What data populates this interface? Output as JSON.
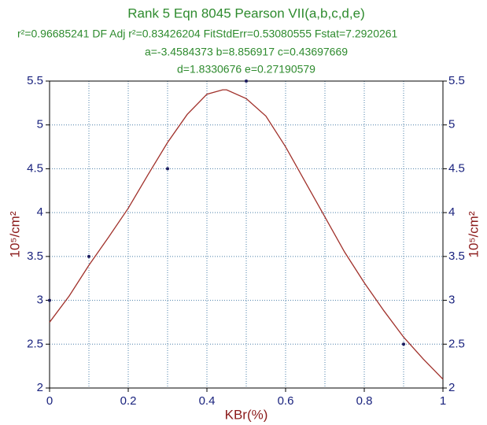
{
  "chart_data": {
    "type": "scatter",
    "title": "Rank 5  Eqn 8045  Pearson VII(a,b,c,d,e)",
    "subtitle": [
      "r²=0.96685241  DF Adj r²=0.83426204  FitStdErr=0.53080555  Fstat=7.2920261",
      "a=-3.4584373 b=8.856917 c=0.43697669",
      "d=1.8330676 e=0.27190579"
    ],
    "x_label": "KBr(%)",
    "y_label": "10⁵/cm²",
    "y2_label": "10⁵/cm²",
    "points": {
      "color": "#1a1a5e",
      "x": [
        0,
        0.1,
        0.3,
        0.5,
        0.9
      ],
      "values": [
        3,
        3.5,
        4.5,
        5.5,
        2.5
      ]
    },
    "fit": {
      "color": "#a0302a",
      "x": [
        0,
        0.05,
        0.1,
        0.15,
        0.2,
        0.25,
        0.3,
        0.35,
        0.4,
        0.44,
        0.45,
        0.5,
        0.55,
        0.6,
        0.65,
        0.7,
        0.75,
        0.8,
        0.85,
        0.9,
        0.95,
        1
      ],
      "values": [
        2.75,
        3.05,
        3.4,
        3.72,
        4.05,
        4.43,
        4.8,
        5.12,
        5.35,
        5.4,
        5.4,
        5.3,
        5.1,
        4.75,
        4.35,
        3.95,
        3.55,
        3.2,
        2.88,
        2.58,
        2.33,
        2.1
      ]
    },
    "xlim": [
      0,
      1
    ],
    "xticks": [
      0,
      0.2,
      0.4,
      0.6,
      0.8,
      1
    ],
    "xminor": [
      0.1,
      0.3,
      0.5,
      0.7,
      0.9
    ],
    "ylim": [
      2,
      5.5
    ],
    "yticks": [
      2,
      2.5,
      3,
      3.5,
      4,
      4.5,
      5,
      5.5
    ],
    "y2lim": [
      2,
      5.5
    ],
    "y2ticks": [
      2,
      2.5,
      3,
      3.5,
      4,
      4.5,
      5,
      5.5
    ],
    "grid": true
  }
}
